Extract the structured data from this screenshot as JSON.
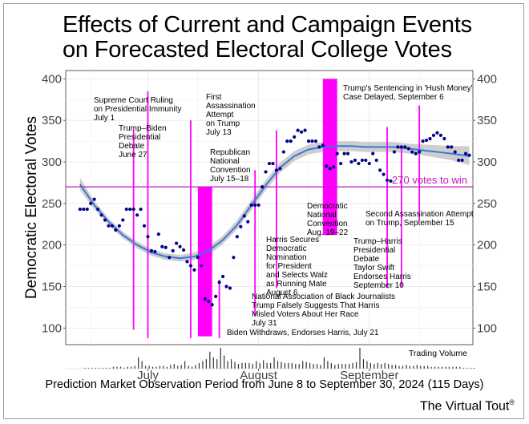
{
  "title_lines": [
    "Effects of Current and Campaign Events",
    "on Forecasted Electoral College Votes"
  ],
  "brand": "The Virtual Tout",
  "brand_mark": "®",
  "colors": {
    "points": "#00008b",
    "smooth": "#3a78d8",
    "band": "#bdbdbd",
    "event": "#ff00ff",
    "threshold": "#c01ac0",
    "volume": "#333333"
  },
  "chart_data": {
    "type": "scatter",
    "xlabel": "Prediction Market Observation Period from June 8 to September 30, 2024 (115 Days)",
    "ylabel": "Democratic Electoral Votes",
    "ylim": [
      80,
      410
    ],
    "xlim": [
      "2024-06-08",
      "2024-09-30"
    ],
    "y_ticks": [
      100,
      150,
      200,
      250,
      300,
      350,
      400
    ],
    "x_ticks": [
      {
        "date": "2024-07-01",
        "label": "July"
      },
      {
        "date": "2024-08-01",
        "label": "August"
      },
      {
        "date": "2024-09-01",
        "label": "September"
      }
    ],
    "grid": true,
    "threshold": {
      "value": 270,
      "label": "270 votes to win"
    },
    "points": [
      [
        "2024-06-12",
        243
      ],
      [
        "2024-06-13",
        243
      ],
      [
        "2024-06-14",
        243
      ],
      [
        "2024-06-15",
        250
      ],
      [
        "2024-06-16",
        255
      ],
      [
        "2024-06-17",
        243
      ],
      [
        "2024-06-18",
        236
      ],
      [
        "2024-06-19",
        230
      ],
      [
        "2024-06-20",
        223
      ],
      [
        "2024-06-21",
        223
      ],
      [
        "2024-06-22",
        218
      ],
      [
        "2024-06-23",
        223
      ],
      [
        "2024-06-24",
        230
      ],
      [
        "2024-06-25",
        243
      ],
      [
        "2024-06-26",
        243
      ],
      [
        "2024-06-27",
        243
      ],
      [
        "2024-06-28",
        236
      ],
      [
        "2024-06-29",
        243
      ],
      [
        "2024-06-30",
        223
      ],
      [
        "2024-07-01",
        210
      ],
      [
        "2024-07-02",
        193
      ],
      [
        "2024-07-03",
        192
      ],
      [
        "2024-07-04",
        213
      ],
      [
        "2024-07-05",
        198
      ],
      [
        "2024-07-06",
        197
      ],
      [
        "2024-07-07",
        185
      ],
      [
        "2024-07-08",
        193
      ],
      [
        "2024-07-09",
        202
      ],
      [
        "2024-07-10",
        198
      ],
      [
        "2024-07-11",
        194
      ],
      [
        "2024-07-12",
        180
      ],
      [
        "2024-07-13",
        175
      ],
      [
        "2024-07-14",
        170
      ],
      [
        "2024-07-15",
        185
      ],
      [
        "2024-07-16",
        175
      ],
      [
        "2024-07-17",
        135
      ],
      [
        "2024-07-18",
        132
      ],
      [
        "2024-07-19",
        128
      ],
      [
        "2024-07-20",
        138
      ],
      [
        "2024-07-21",
        155
      ],
      [
        "2024-07-22",
        162
      ],
      [
        "2024-07-23",
        150
      ],
      [
        "2024-07-24",
        148
      ],
      [
        "2024-07-25",
        185
      ],
      [
        "2024-07-26",
        210
      ],
      [
        "2024-07-27",
        222
      ],
      [
        "2024-07-28",
        235
      ],
      [
        "2024-07-29",
        228
      ],
      [
        "2024-07-30",
        248
      ],
      [
        "2024-07-31",
        248
      ],
      [
        "2024-08-01",
        248
      ],
      [
        "2024-08-02",
        270
      ],
      [
        "2024-08-03",
        288
      ],
      [
        "2024-08-04",
        298
      ],
      [
        "2024-08-05",
        298
      ],
      [
        "2024-08-06",
        290
      ],
      [
        "2024-08-07",
        292
      ],
      [
        "2024-08-08",
        312
      ],
      [
        "2024-08-09",
        325
      ],
      [
        "2024-08-10",
        325
      ],
      [
        "2024-08-11",
        330
      ],
      [
        "2024-08-12",
        338
      ],
      [
        "2024-08-13",
        336
      ],
      [
        "2024-08-14",
        338
      ],
      [
        "2024-08-15",
        325
      ],
      [
        "2024-08-16",
        325
      ],
      [
        "2024-08-17",
        325
      ],
      [
        "2024-08-18",
        318
      ],
      [
        "2024-08-19",
        320
      ],
      [
        "2024-08-20",
        295
      ],
      [
        "2024-08-21",
        292
      ],
      [
        "2024-08-22",
        294
      ],
      [
        "2024-08-23",
        310
      ],
      [
        "2024-08-24",
        298
      ],
      [
        "2024-08-25",
        310
      ],
      [
        "2024-08-26",
        310
      ],
      [
        "2024-08-27",
        300
      ],
      [
        "2024-08-28",
        302
      ],
      [
        "2024-08-29",
        298
      ],
      [
        "2024-08-30",
        302
      ],
      [
        "2024-08-31",
        302
      ],
      [
        "2024-09-01",
        298
      ],
      [
        "2024-09-02",
        310
      ],
      [
        "2024-09-03",
        302
      ],
      [
        "2024-09-04",
        290
      ],
      [
        "2024-09-05",
        285
      ],
      [
        "2024-09-06",
        278
      ],
      [
        "2024-09-07",
        277
      ],
      [
        "2024-09-08",
        312
      ],
      [
        "2024-09-09",
        318
      ],
      [
        "2024-09-10",
        318
      ],
      [
        "2024-09-11",
        318
      ],
      [
        "2024-09-12",
        316
      ],
      [
        "2024-09-13",
        312
      ],
      [
        "2024-09-14",
        310
      ],
      [
        "2024-09-15",
        312
      ],
      [
        "2024-09-16",
        325
      ],
      [
        "2024-09-17",
        326
      ],
      [
        "2024-09-18",
        328
      ],
      [
        "2024-09-19",
        332
      ],
      [
        "2024-09-20",
        335
      ],
      [
        "2024-09-21",
        332
      ],
      [
        "2024-09-22",
        328
      ],
      [
        "2024-09-23",
        318
      ],
      [
        "2024-09-24",
        318
      ],
      [
        "2024-09-25",
        312
      ],
      [
        "2024-09-26",
        302
      ],
      [
        "2024-09-27",
        302
      ],
      [
        "2024-09-28",
        310
      ],
      [
        "2024-09-29",
        308
      ]
    ],
    "smooth": [
      [
        "2024-06-12",
        273,
        266,
        281
      ],
      [
        "2024-06-16",
        248,
        243,
        253
      ],
      [
        "2024-06-20",
        228,
        224,
        232
      ],
      [
        "2024-06-24",
        212,
        208,
        216
      ],
      [
        "2024-06-28",
        200,
        196,
        204
      ],
      [
        "2024-07-02",
        191,
        187,
        195
      ],
      [
        "2024-07-06",
        186,
        182,
        190
      ],
      [
        "2024-07-10",
        184,
        180,
        188
      ],
      [
        "2024-07-14",
        186,
        182,
        191
      ],
      [
        "2024-07-18",
        193,
        188,
        198
      ],
      [
        "2024-07-22",
        206,
        201,
        211
      ],
      [
        "2024-07-26",
        224,
        219,
        230
      ],
      [
        "2024-07-30",
        248,
        242,
        254
      ],
      [
        "2024-08-03",
        272,
        266,
        278
      ],
      [
        "2024-08-07",
        293,
        287,
        299
      ],
      [
        "2024-08-11",
        307,
        301,
        313
      ],
      [
        "2024-08-15",
        315,
        309,
        321
      ],
      [
        "2024-08-19",
        318,
        312,
        324
      ],
      [
        "2024-08-23",
        319,
        313,
        325
      ],
      [
        "2024-08-27",
        319,
        313,
        325
      ],
      [
        "2024-08-31",
        318,
        312,
        324
      ],
      [
        "2024-09-04",
        318,
        312,
        324
      ],
      [
        "2024-09-08",
        318,
        312,
        324
      ],
      [
        "2024-09-12",
        316,
        310,
        322
      ],
      [
        "2024-09-16",
        314,
        308,
        321
      ],
      [
        "2024-09-20",
        312,
        305,
        320
      ],
      [
        "2024-09-24",
        310,
        302,
        319
      ],
      [
        "2024-09-29",
        307,
        296,
        319
      ]
    ],
    "events": [
      {
        "date": "2024-06-27",
        "kind": "line",
        "label": [
          "Trump–Biden",
          "Presidential",
          "Debate",
          "June 27"
        ]
      },
      {
        "date": "2024-07-01",
        "kind": "line",
        "label": [
          "Supreme Court Ruling",
          "on Presidential Immunity",
          "July 1"
        ]
      },
      {
        "date": "2024-07-13",
        "kind": "line",
        "label": [
          "First",
          "Assassination",
          "Attempt",
          "on Trump",
          "July 13"
        ]
      },
      {
        "start": "2024-07-15",
        "end": "2024-07-18",
        "kind": "band",
        "label": [
          "Republican",
          "National",
          "Convention",
          "July 15–18"
        ]
      },
      {
        "date": "2024-07-21",
        "kind": "line",
        "label": [
          "Biden Withdraws, Endorses Harris, July 21"
        ]
      },
      {
        "date": "2024-07-31",
        "kind": "line",
        "label": [
          "National Association of Black Journalists",
          "Trump Falsely Suggests That Harris",
          "Misled Voters About Her Race",
          "July 31"
        ]
      },
      {
        "date": "2024-08-06",
        "kind": "line",
        "label": [
          "Harris Secures",
          "Democratic",
          "Nomination",
          "for President",
          "and Selects Walz",
          "as Running Mate",
          "August 6"
        ]
      },
      {
        "start": "2024-08-19",
        "end": "2024-08-22",
        "kind": "band",
        "label": [
          "Democratic",
          "National",
          "Convention",
          "Aug. 19–22"
        ]
      },
      {
        "date": "2024-09-06",
        "kind": "line",
        "label": [
          "Trump's Sentencing in 'Hush Money'",
          "Case Delayed, September 6"
        ]
      },
      {
        "date": "2024-09-10",
        "kind": "line",
        "label": [
          "Trump–Harris",
          "Presidential",
          "Debate",
          "Taylor Swift",
          "Endorses Harris",
          "September 10"
        ]
      },
      {
        "date": "2024-09-15",
        "kind": "line",
        "label": [
          "Second Assassination Attempt",
          "on Trump, September 15"
        ]
      }
    ],
    "volume_label": "Trading Volume",
    "volume": [
      0,
      0,
      0,
      0,
      0,
      1,
      1,
      1,
      1,
      1,
      1,
      1,
      1,
      2,
      2,
      2,
      1,
      2,
      2,
      3,
      12,
      8,
      3,
      3,
      2,
      2,
      3,
      3,
      2,
      4,
      5,
      3,
      4,
      8,
      3,
      2,
      4,
      6,
      8,
      10,
      18,
      12,
      10,
      22,
      14,
      8,
      10,
      7,
      5,
      6,
      6,
      6,
      5,
      8,
      6,
      9,
      6,
      6,
      12,
      8,
      7,
      6,
      6,
      6,
      5,
      5,
      8,
      7,
      6,
      5,
      5,
      4,
      12,
      8,
      6,
      4,
      5,
      5,
      5,
      5,
      6,
      7,
      22,
      10,
      8,
      6,
      5,
      6,
      5,
      6,
      5,
      4,
      4,
      3,
      3,
      4,
      3,
      3,
      4,
      3,
      3,
      3,
      2,
      2,
      2,
      2,
      2,
      2,
      2,
      2,
      2,
      1,
      1,
      1,
      1
    ]
  }
}
